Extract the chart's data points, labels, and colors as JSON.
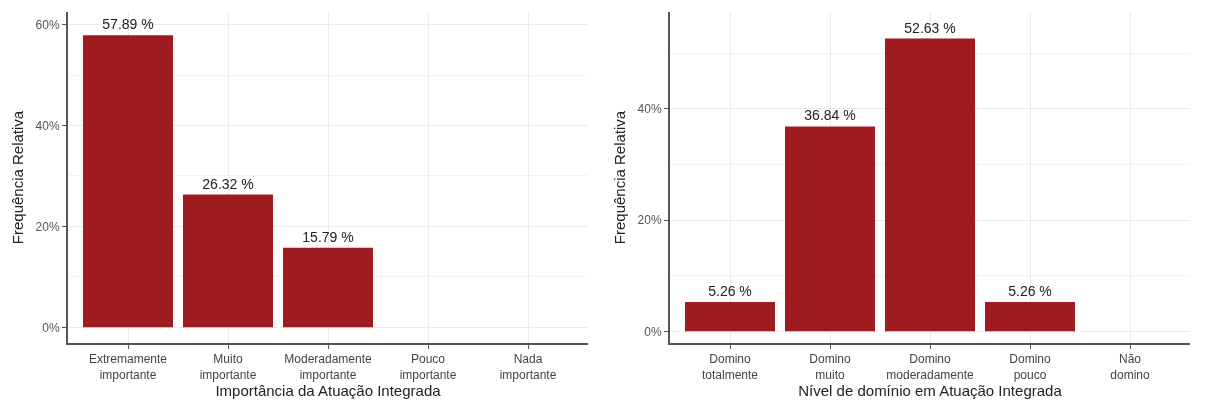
{
  "chart_data": [
    {
      "type": "bar",
      "xlabel": "Importância da Atuação Integrada",
      "ylabel": "Frequência Relativa",
      "categories": [
        "Extremamente importante",
        "Muito importante",
        "Moderadamente importante",
        "Pouco importante",
        "Nada importante"
      ],
      "values": [
        57.89,
        26.32,
        15.79,
        0,
        0
      ],
      "value_labels": [
        "57.89 %",
        "26.32 %",
        "15.79 %",
        null,
        null
      ],
      "color": "#9e1b20",
      "ylim": [
        -3.1,
        62.5
      ],
      "yticks": [
        {
          "value": 0,
          "label": "0%"
        },
        {
          "value": 20,
          "label": "20%"
        },
        {
          "value": 40,
          "label": "40%"
        },
        {
          "value": 60,
          "label": "60%"
        }
      ],
      "grid": true
    },
    {
      "type": "bar",
      "xlabel": "Nível de domínio em Atuação Integrada",
      "ylabel": "Frequência Relativa",
      "categories": [
        "Domino totalmente",
        "Domino muito",
        "Domino moderadamente",
        "Domino pouco",
        "Não domino"
      ],
      "values": [
        5.26,
        36.84,
        52.63,
        5.26,
        0
      ],
      "value_labels": [
        "5.26 %",
        "36.84 %",
        "52.63 %",
        "5.26 %",
        null
      ],
      "color": "#9e1b20",
      "ylim": [
        -2.1,
        57.4
      ],
      "yticks": [
        {
          "value": 0,
          "label": "0%"
        },
        {
          "value": 20,
          "label": "20%"
        },
        {
          "value": 40,
          "label": "40%"
        }
      ],
      "grid": true
    }
  ]
}
